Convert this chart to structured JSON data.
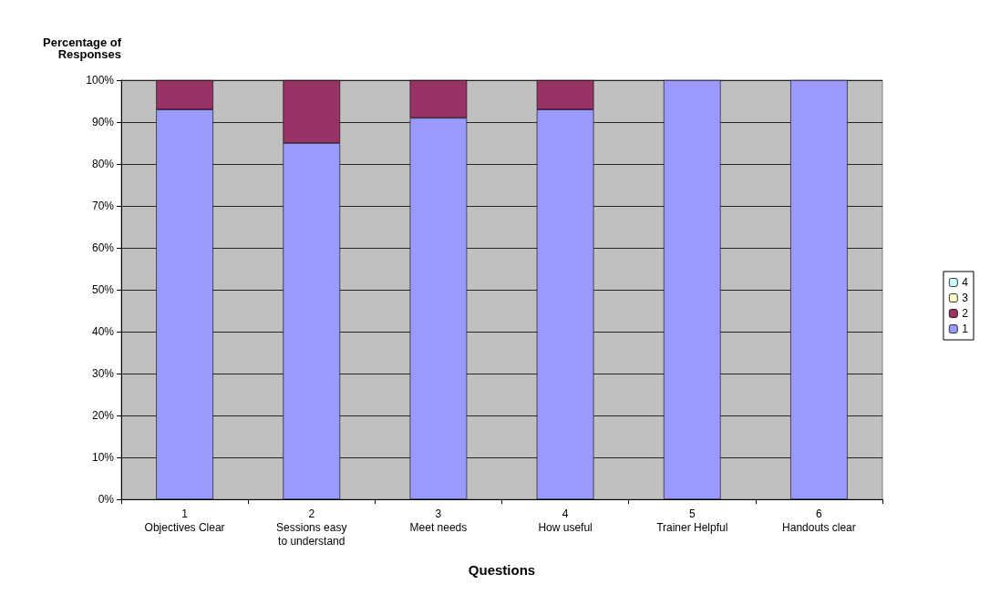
{
  "chart_data": {
    "type": "bar",
    "ylabel": "Percentage of\nResponses",
    "xlabel": "Questions",
    "categories": [
      "1\nObjectives Clear",
      "2\nSessions easy\nto understand",
      "3\nMeet needs",
      "4\nHow useful",
      "5\nTrainer Helpful",
      "6\nHandouts clear"
    ],
    "stacked": true,
    "series": [
      {
        "name": "1",
        "color": "#9999ff",
        "values": [
          93,
          85,
          91,
          93,
          100,
          100
        ]
      },
      {
        "name": "2",
        "color": "#993366",
        "values": [
          7,
          15,
          9,
          7,
          0,
          0
        ]
      },
      {
        "name": "3",
        "color": "#ffffcc",
        "values": [
          0,
          0,
          0,
          0,
          0,
          0
        ]
      },
      {
        "name": "4",
        "color": "#ccffff",
        "values": [
          0,
          0,
          0,
          0,
          0,
          0
        ]
      }
    ],
    "ylim": [
      0,
      100
    ],
    "yticks": [
      {
        "value": 0,
        "label": "0%"
      },
      {
        "value": 10,
        "label": "10%"
      },
      {
        "value": 20,
        "label": "20%"
      },
      {
        "value": 30,
        "label": "30%"
      },
      {
        "value": 40,
        "label": "40%"
      },
      {
        "value": 50,
        "label": "50%"
      },
      {
        "value": 60,
        "label": "60%"
      },
      {
        "value": 70,
        "label": "70%"
      },
      {
        "value": 80,
        "label": "80%"
      },
      {
        "value": 90,
        "label": "90%"
      },
      {
        "value": 100,
        "label": "100%"
      }
    ],
    "grid": "y",
    "legend": "right"
  }
}
